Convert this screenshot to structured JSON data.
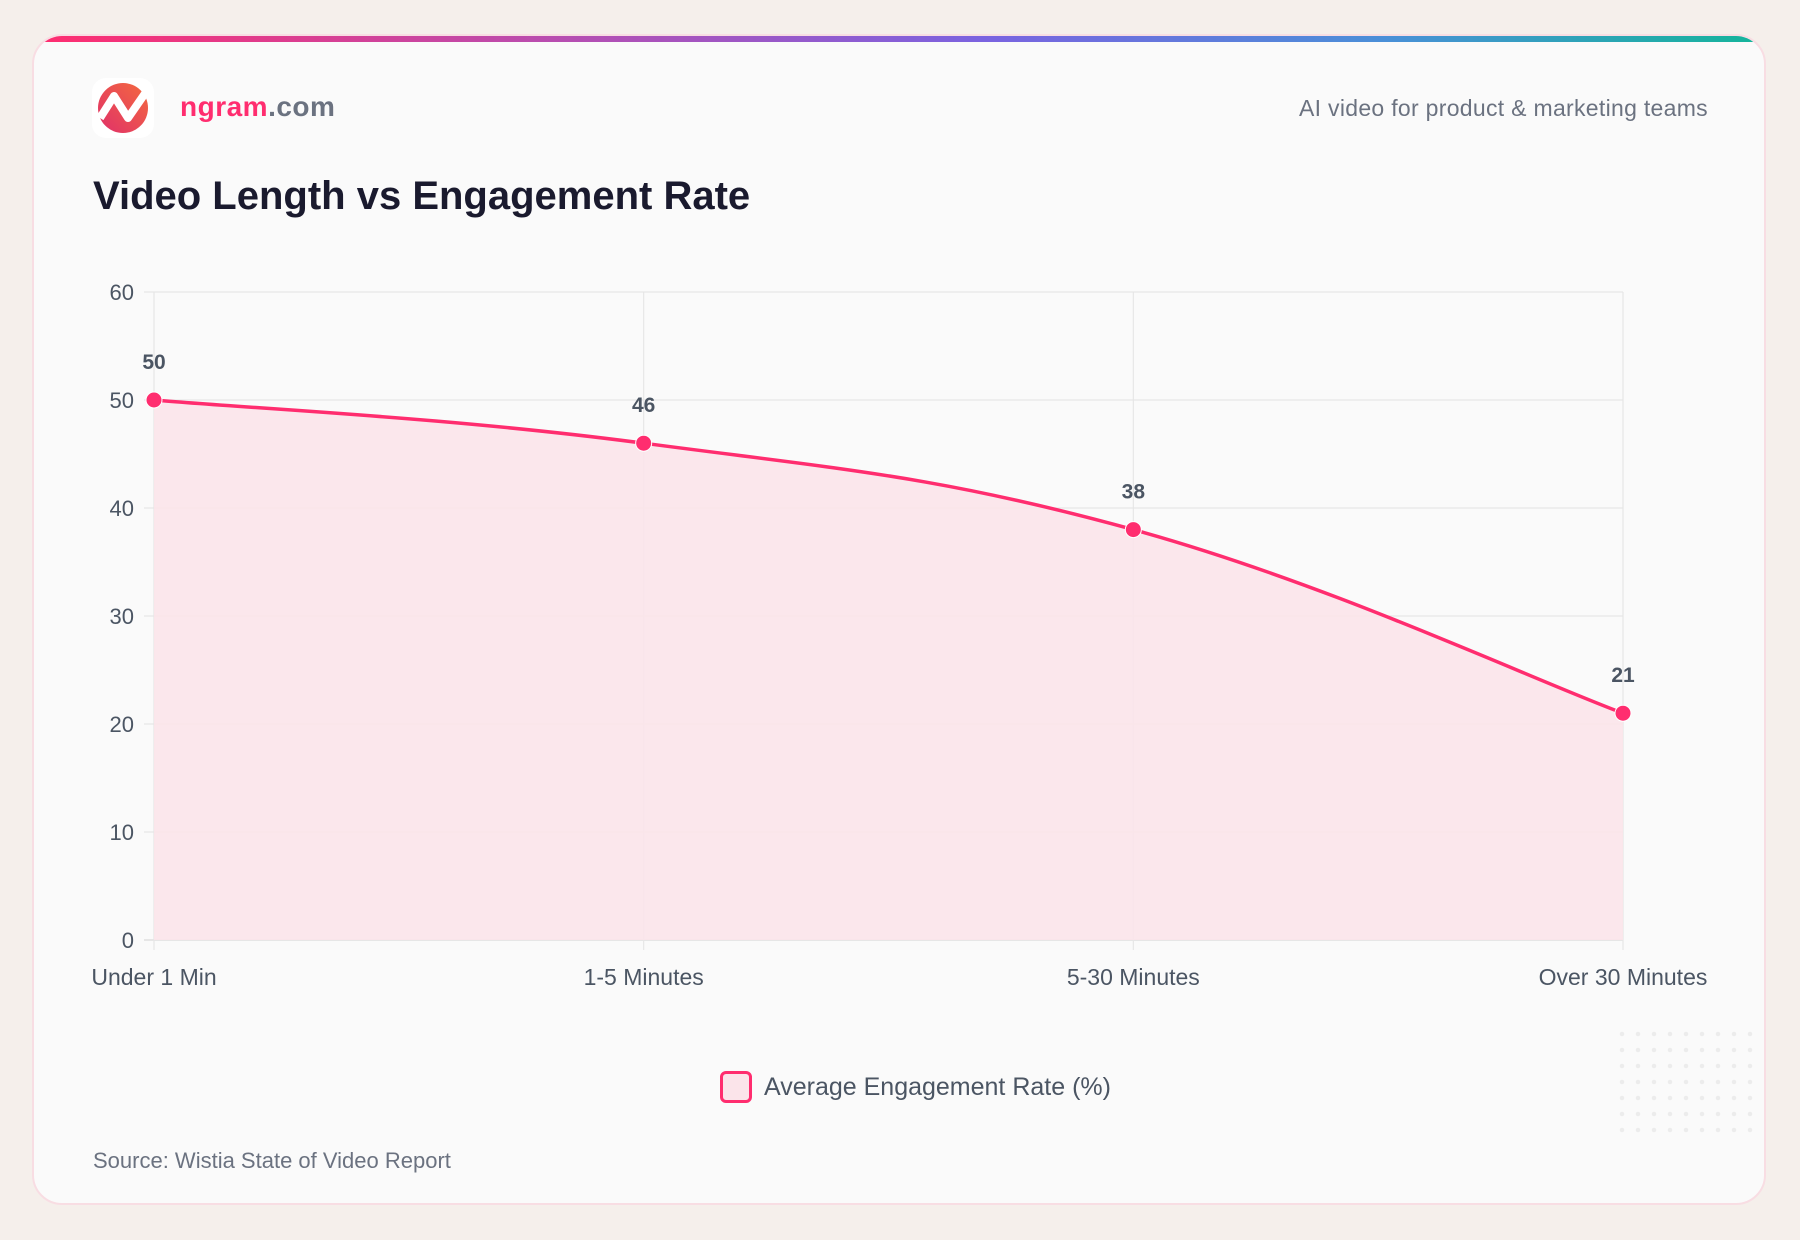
{
  "header": {
    "brand_main": "ngram",
    "brand_suffix": ".com",
    "tagline": "AI video for product & marketing teams"
  },
  "footer": {
    "source": "Source: Wistia State of Video Report"
  },
  "colors": {
    "accent": "#ff2d6f",
    "fill": "#fbe4ea",
    "text": "#1a1a2e"
  },
  "chart_data": {
    "type": "area",
    "title": "Video Length vs Engagement Rate",
    "categories": [
      "Under 1 Min",
      "1-5 Minutes",
      "5-30 Minutes",
      "Over 30 Minutes"
    ],
    "series": [
      {
        "name": "Average Engagement Rate (%)",
        "values": [
          50,
          46,
          38,
          21
        ]
      }
    ],
    "ylim": [
      0,
      60
    ],
    "yticks": [
      0,
      10,
      20,
      30,
      40,
      50,
      60
    ],
    "grid": true,
    "legend": "bottom",
    "data_labels": true
  }
}
